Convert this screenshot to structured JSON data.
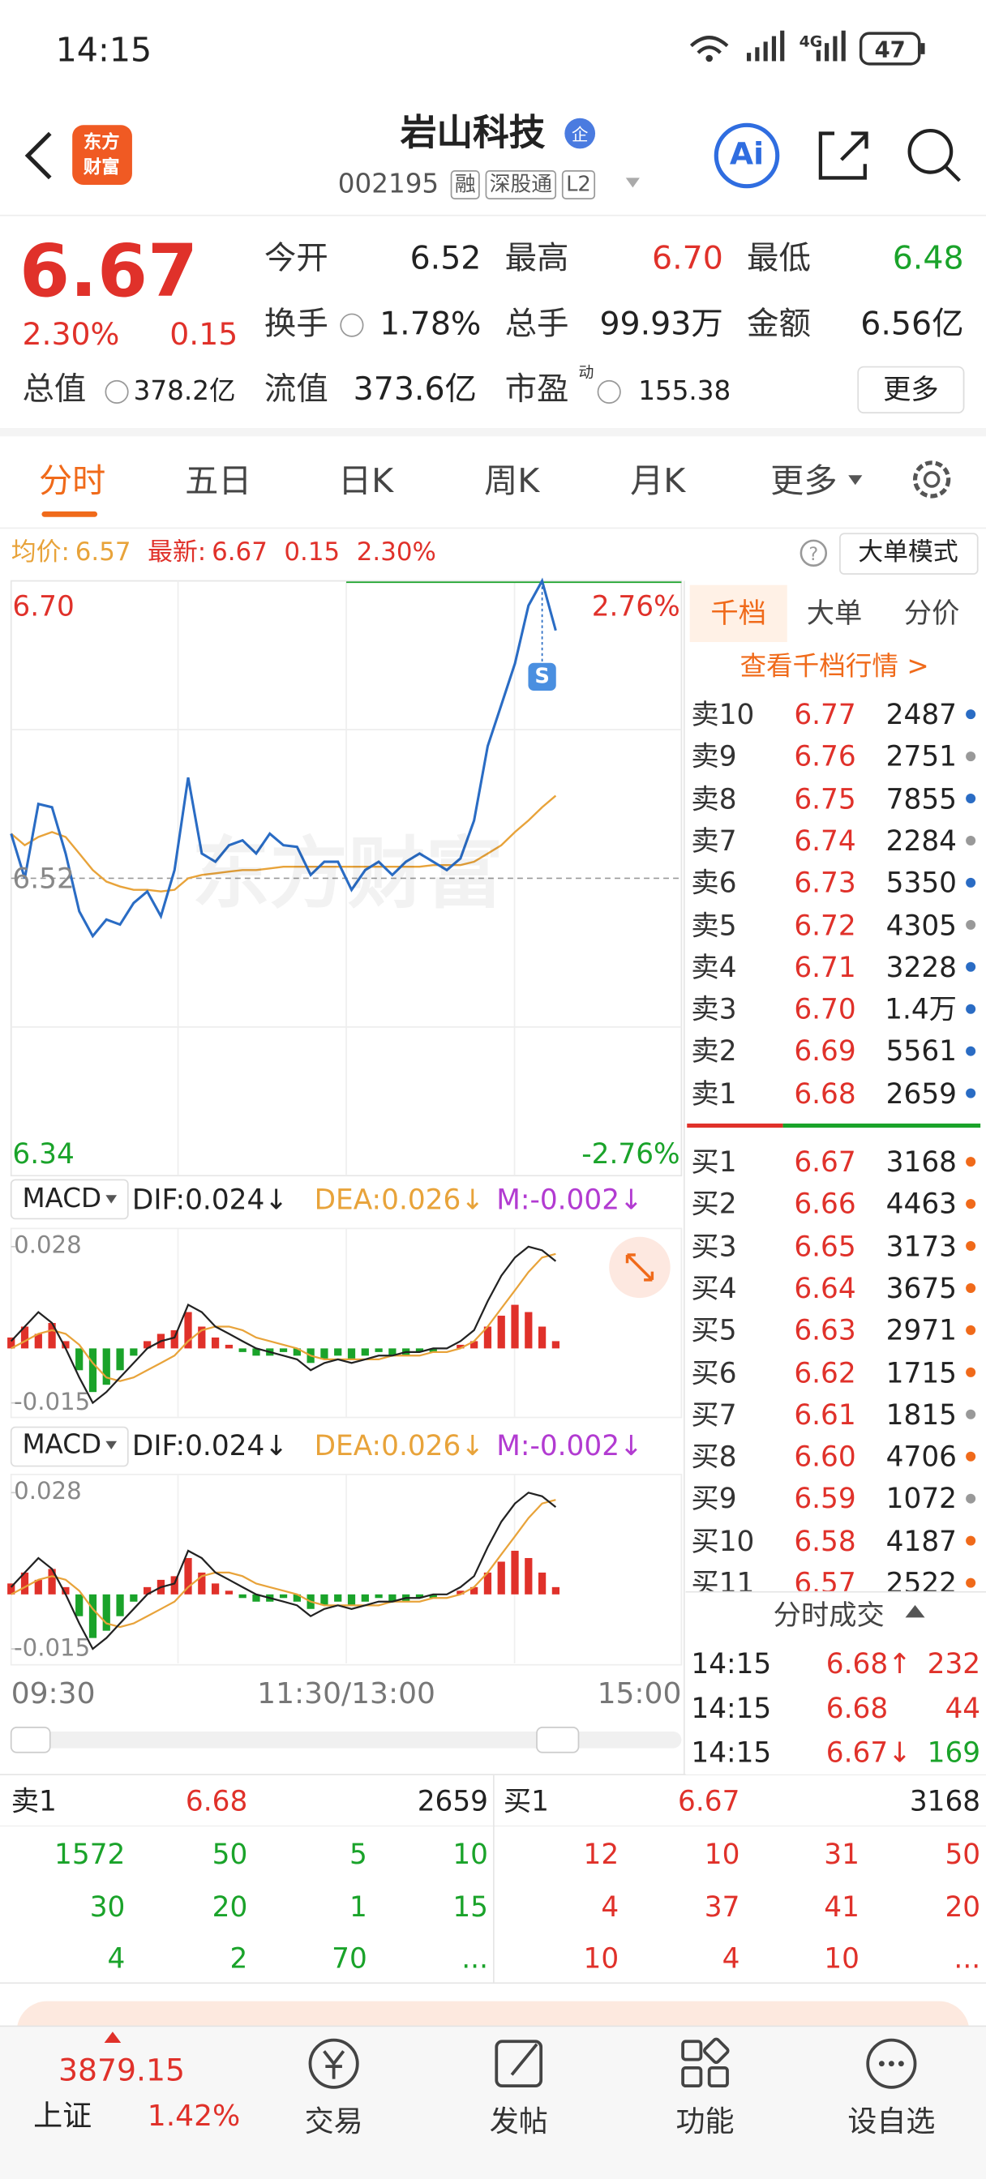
{
  "status_bar": {
    "time": "14:15",
    "network": "4G",
    "battery": "47"
  },
  "header": {
    "logo": [
      "东方",
      "财富"
    ],
    "title": "岩山科技",
    "badge": "企",
    "code": "002195",
    "tags": [
      "融",
      "深股通",
      "L2"
    ],
    "ai": "Ai"
  },
  "quote": {
    "price": "6.67",
    "change_pct": "2.30%",
    "change": "0.15",
    "stats": [
      {
        "label": "今开",
        "value": "6.52",
        "color": "#222222"
      },
      {
        "label": "最高",
        "value": "6.70",
        "color": "#e0312a"
      },
      {
        "label": "最低",
        "value": "6.48",
        "color": "#1aa32a"
      },
      {
        "label": "换手",
        "value": "1.78%",
        "color": "#222222"
      },
      {
        "label": "总手",
        "value": "99.93万",
        "color": "#222222"
      },
      {
        "label": "金额",
        "value": "6.56亿",
        "color": "#222222"
      }
    ],
    "total_value": {
      "label": "总值",
      "value": "378.2亿"
    },
    "float_value": {
      "label": "流值",
      "value": "373.6亿"
    },
    "pe": {
      "label": "市盈",
      "sup": "动",
      "value": "155.38"
    },
    "more": "更多"
  },
  "tabs": {
    "items": [
      "分时",
      "五日",
      "日K",
      "周K",
      "月K",
      "更多"
    ],
    "active": 0
  },
  "summary": {
    "avg_label": "均价:",
    "avg": "6.57",
    "latest_label": "最新:",
    "latest": "6.67",
    "change": "0.15",
    "change_pct": "2.30%",
    "mode": "大单模式"
  },
  "intraday": {
    "type": "line",
    "watermark": "东方财富",
    "marker": "S",
    "series": [
      {
        "color": "#2a6cc4",
        "values": [
          6.547,
          6.52,
          6.565,
          6.563,
          6.535,
          6.5,
          6.485,
          6.495,
          6.492,
          6.505,
          6.512,
          6.497,
          6.525,
          6.581,
          6.535,
          6.53,
          6.54,
          6.543,
          6.535,
          6.547,
          6.54,
          6.539,
          6.522,
          6.53,
          6.53,
          6.513,
          6.525,
          6.53,
          6.522,
          6.53,
          6.535,
          6.53,
          6.525,
          6.532,
          6.555,
          6.6,
          6.625,
          6.65,
          6.685,
          6.7,
          6.67
        ]
      },
      {
        "color": "#e8a33a",
        "values": [
          6.547,
          6.54,
          6.545,
          6.548,
          6.545,
          6.535,
          6.525,
          6.518,
          6.515,
          6.513,
          6.513,
          6.512,
          6.513,
          6.52,
          6.522,
          6.523,
          6.524,
          6.525,
          6.525,
          6.526,
          6.527,
          6.527,
          6.527,
          6.527,
          6.527,
          6.527,
          6.527,
          6.527,
          6.527,
          6.527,
          6.527,
          6.528,
          6.528,
          6.528,
          6.53,
          6.535,
          6.54,
          6.548,
          6.555,
          6.563,
          6.57
        ]
      }
    ],
    "ylim": [
      6.34,
      6.7
    ],
    "yticks": [
      {
        "value": 6.7,
        "label": "6.70"
      },
      {
        "value": 6.52,
        "label": "6.52"
      },
      {
        "value": 6.34,
        "label": "6.34"
      }
    ],
    "y2lim": [
      -2.76,
      2.76
    ],
    "y2ticks": [
      {
        "value": 2.76,
        "label": "2.76%"
      },
      {
        "value": -2.76,
        "label": "-2.76%"
      }
    ],
    "xticks": [
      "09:30",
      "11:30/13:00",
      "15:00"
    ]
  },
  "macd": {
    "type": "bar",
    "ylim": [
      -0.019,
      0.033
    ],
    "yticks": [
      {
        "value": 0.028,
        "label": "0.028"
      },
      {
        "value": -0.015,
        "label": "-0.015"
      }
    ],
    "colors": {
      "up": "#e0312a",
      "down": "#1aa32a",
      "dif": "#222222",
      "dea": "#e8a33a"
    },
    "hist": [
      0.003,
      0.006,
      0.004,
      0.007,
      0.002,
      -0.006,
      -0.012,
      -0.01,
      -0.006,
      -0.002,
      0.002,
      0.004,
      0.005,
      0.01,
      0.006,
      0.003,
      0.001,
      -0.001,
      -0.002,
      -0.002,
      -0.001,
      -0.002,
      -0.004,
      -0.003,
      -0.002,
      -0.003,
      -0.002,
      -0.001,
      -0.002,
      -0.002,
      -0.001,
      -0.001,
      0,
      0.001,
      0.002,
      0.006,
      0.009,
      0.012,
      0.01,
      0.006,
      0.002
    ],
    "dif": [
      0.002,
      0.006,
      0.01,
      0.007,
      0,
      -0.008,
      -0.015,
      -0.012,
      -0.008,
      -0.004,
      0,
      0.002,
      0.003,
      0.012,
      0.01,
      0.006,
      0.004,
      0.002,
      0,
      -0.001,
      -0.002,
      -0.003,
      -0.006,
      -0.004,
      -0.003,
      -0.004,
      -0.003,
      -0.002,
      -0.002,
      -0.001,
      -0.001,
      0,
      0,
      0.002,
      0.005,
      0.013,
      0.02,
      0.025,
      0.028,
      0.027,
      0.024
    ],
    "dea": [
      0,
      0.002,
      0.004,
      0.005,
      0.004,
      0.001,
      -0.004,
      -0.008,
      -0.009,
      -0.008,
      -0.006,
      -0.004,
      -0.002,
      0.002,
      0.005,
      0.006,
      0.006,
      0.005,
      0.003,
      0.002,
      0.001,
      0,
      -0.002,
      -0.003,
      -0.003,
      -0.003,
      -0.003,
      -0.003,
      -0.002,
      -0.002,
      -0.002,
      -0.001,
      -0.001,
      0,
      0.002,
      0.006,
      0.011,
      0.016,
      0.021,
      0.025,
      0.026
    ],
    "panels": [
      {
        "name": "MACD",
        "dif": "DIF:0.024↓",
        "dea": "DEA:0.026↓",
        "m": "M:-0.002↓"
      },
      {
        "name": "MACD",
        "dif": "DIF:0.024↓",
        "dea": "DEA:0.026↓",
        "m": "M:-0.002↓"
      }
    ]
  },
  "order_book": {
    "tabs": [
      "千档",
      "大单",
      "分价"
    ],
    "link": "查看千档行情 >",
    "asks": [
      {
        "label": "卖10",
        "price": "6.77",
        "volume": "2487",
        "dot": "#2a6cc4"
      },
      {
        "label": "卖9",
        "price": "6.76",
        "volume": "2751",
        "dot": "#999999"
      },
      {
        "label": "卖8",
        "price": "6.75",
        "volume": "7855",
        "dot": "#2a6cc4"
      },
      {
        "label": "卖7",
        "price": "6.74",
        "volume": "2284",
        "dot": "#999999"
      },
      {
        "label": "卖6",
        "price": "6.73",
        "volume": "5350",
        "dot": "#2a6cc4"
      },
      {
        "label": "卖5",
        "price": "6.72",
        "volume": "4305",
        "dot": "#999999"
      },
      {
        "label": "卖4",
        "price": "6.71",
        "volume": "3228",
        "dot": "#2a6cc4"
      },
      {
        "label": "卖3",
        "price": "6.70",
        "volume": "1.4万",
        "dot": "#2a6cc4"
      },
      {
        "label": "卖2",
        "price": "6.69",
        "volume": "5561",
        "dot": "#2a6cc4"
      },
      {
        "label": "卖1",
        "price": "6.68",
        "volume": "2659",
        "dot": "#2a6cc4"
      }
    ],
    "bids": [
      {
        "label": "买1",
        "price": "6.67",
        "volume": "3168",
        "dot": "#f06a1a"
      },
      {
        "label": "买2",
        "price": "6.66",
        "volume": "4463",
        "dot": "#f06a1a"
      },
      {
        "label": "买3",
        "price": "6.65",
        "volume": "3173",
        "dot": "#f06a1a"
      },
      {
        "label": "买4",
        "price": "6.64",
        "volume": "3675",
        "dot": "#f06a1a"
      },
      {
        "label": "买5",
        "price": "6.63",
        "volume": "2971",
        "dot": "#f06a1a"
      },
      {
        "label": "买6",
        "price": "6.62",
        "volume": "1715",
        "dot": "#f06a1a"
      },
      {
        "label": "买7",
        "price": "6.61",
        "volume": "1815",
        "dot": "#999999"
      },
      {
        "label": "买8",
        "price": "6.60",
        "volume": "4706",
        "dot": "#f06a1a"
      },
      {
        "label": "买9",
        "price": "6.59",
        "volume": "1072",
        "dot": "#999999"
      },
      {
        "label": "买10",
        "price": "6.58",
        "volume": "4187",
        "dot": "#f06a1a"
      },
      {
        "label": "买11",
        "price": "6.57",
        "volume": "2522",
        "dot": "#f06a1a"
      }
    ]
  },
  "trades": {
    "title": "分时成交",
    "rows": [
      {
        "time": "14:15",
        "price": "6.68↑",
        "volume": "232",
        "color": "#e0312a"
      },
      {
        "time": "14:15",
        "price": "6.68",
        "volume": "44",
        "color": "#e0312a"
      },
      {
        "time": "14:15",
        "price": "6.67↓",
        "volume": "169",
        "color": "#1aa32a"
      }
    ]
  },
  "queues": [
    {
      "label": "卖1",
      "price": "6.68",
      "volume": "2659",
      "color": "#1aa32a",
      "orders": [
        [
          "1572",
          "50",
          "5",
          "10"
        ],
        [
          "30",
          "20",
          "1",
          "15"
        ],
        [
          "4",
          "2",
          "70",
          "..."
        ]
      ]
    },
    {
      "label": "买1",
      "price": "6.67",
      "volume": "3168",
      "color": "#e0312a",
      "orders": [
        [
          "12",
          "10",
          "31",
          "50"
        ],
        [
          "4",
          "37",
          "41",
          "20"
        ],
        [
          "10",
          "4",
          "10",
          "..."
        ]
      ]
    }
  ],
  "index_bar": {
    "value": "3879.15",
    "name": "上证",
    "change_pct": "1.42%"
  },
  "nav": [
    "交易",
    "发帖",
    "功能",
    "设自选"
  ]
}
